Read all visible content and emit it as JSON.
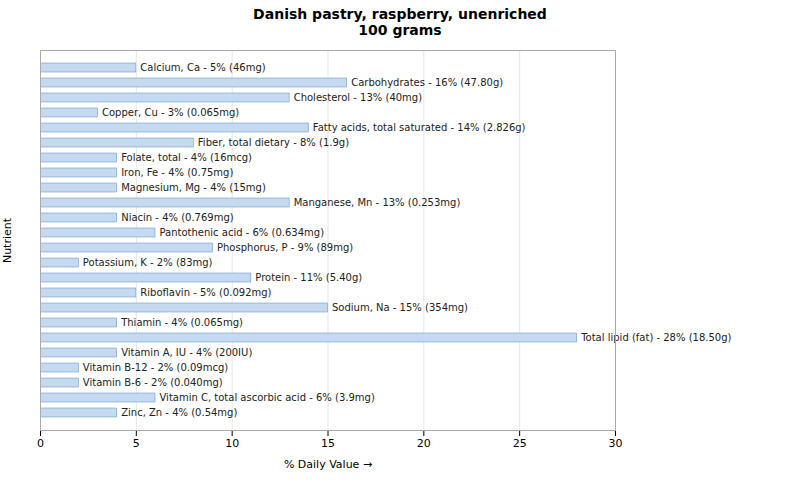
{
  "chart_data": {
    "type": "bar",
    "orientation": "horizontal",
    "title": "Danish pastry, raspberry, unenriched\n100 grams",
    "xlabel": "% Daily Value",
    "ylabel": "Nutrient",
    "categories": [
      "Calcium, Ca - 5% (46mg)",
      "Carbohydrates - 16% (47.80g)",
      "Cholesterol - 13% (40mg)",
      "Copper, Cu - 3% (0.065mg)",
      "Fatty acids, total saturated - 14% (2.826g)",
      "Fiber, total dietary - 8% (1.9g)",
      "Folate, total - 4% (16mcg)",
      "Iron, Fe - 4% (0.75mg)",
      "Magnesium, Mg - 4% (15mg)",
      "Manganese, Mn - 13% (0.253mg)",
      "Niacin - 4% (0.769mg)",
      "Pantothenic acid - 6% (0.634mg)",
      "Phosphorus, P - 9% (89mg)",
      "Potassium, K - 2% (83mg)",
      "Protein - 11% (5.40g)",
      "Riboflavin - 5% (0.092mg)",
      "Sodium, Na - 15% (354mg)",
      "Thiamin - 4% (0.065mg)",
      "Total lipid (fat) - 28% (18.50g)",
      "Vitamin A, IU - 4% (200IU)",
      "Vitamin B-12 - 2% (0.09mcg)",
      "Vitamin B-6 - 2% (0.040mg)",
      "Vitamin C, total ascorbic acid - 6% (3.9mg)",
      "Zinc, Zn - 4% (0.54mg)"
    ],
    "values": [
      5,
      16,
      13,
      3,
      14,
      8,
      4,
      4,
      4,
      13,
      4,
      6,
      9,
      2,
      11,
      5,
      15,
      4,
      28,
      4,
      2,
      2,
      6,
      4
    ],
    "color": "#c5d9f1",
    "xlim": [
      0,
      30
    ],
    "xticks": [
      0,
      5,
      10,
      15,
      20,
      25,
      30
    ],
    "grid": true,
    "tick_labels": "x"
  }
}
